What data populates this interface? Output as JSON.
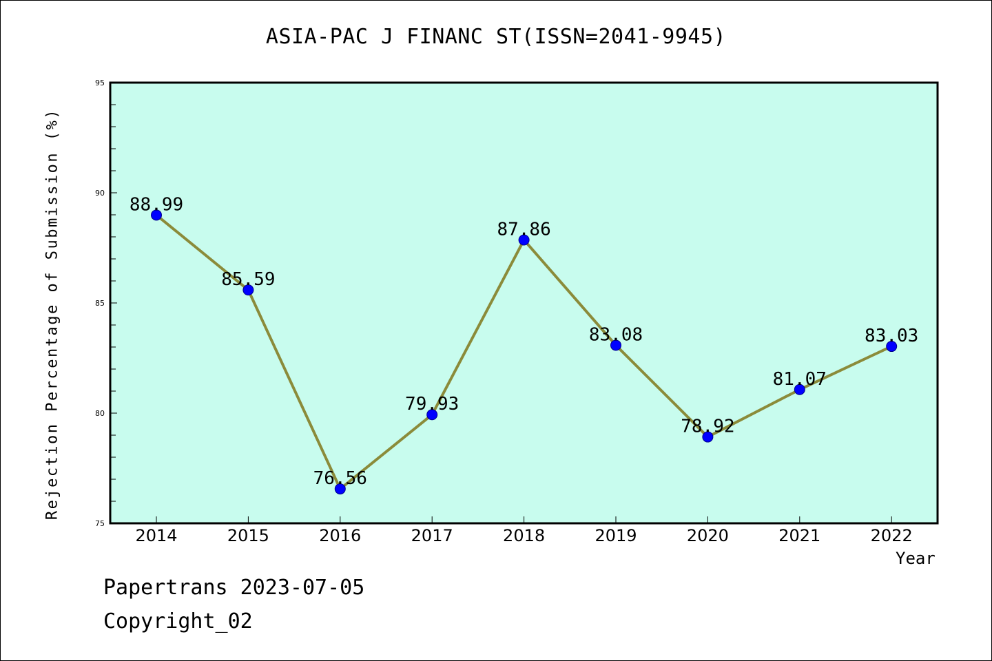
{
  "chart_data": {
    "type": "line",
    "title": "ASIA-PAC J FINANC ST(ISSN=2041-9945)",
    "xlabel": "Year",
    "ylabel": "Rejection Percentage of Submission (%)",
    "categories": [
      "2014",
      "2015",
      "2016",
      "2017",
      "2018",
      "2019",
      "2020",
      "2021",
      "2022"
    ],
    "values": [
      88.99,
      85.59,
      76.56,
      79.93,
      87.86,
      83.08,
      78.92,
      81.07,
      83.03
    ],
    "data_labels": [
      "88.99",
      "85.59",
      "76.56",
      "79.93",
      "87.86",
      "83.08",
      "78.92",
      "81.07",
      "83.03"
    ],
    "ylim": [
      75,
      95
    ],
    "yticks": [
      "75",
      "80",
      "85",
      "90",
      "95"
    ],
    "grid": false,
    "colors": {
      "plot_background": "#c8fcee",
      "line": "#8b8b3a",
      "marker": "#0000ff"
    }
  },
  "footer": {
    "line1": "Papertrans 2023-07-05",
    "line2": "Copyright_02"
  }
}
